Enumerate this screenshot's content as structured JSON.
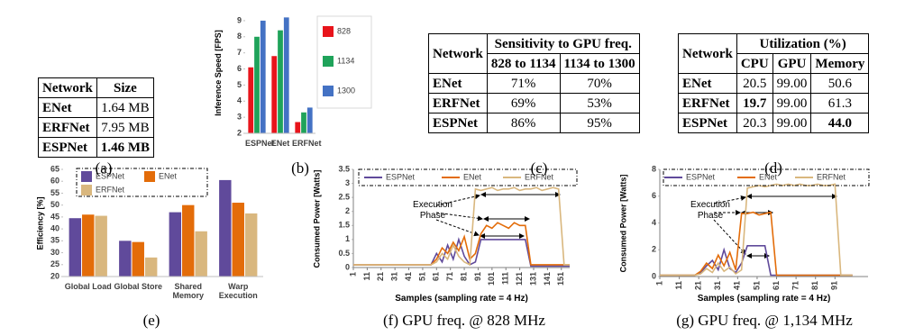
{
  "table_a": {
    "caption": "(a)",
    "header": [
      "Network",
      "Size"
    ],
    "rows": [
      [
        "ENet",
        "1.64 MB"
      ],
      [
        "ERFNet",
        "7.95 MB"
      ],
      [
        "ESPNet",
        {
          "text": "1.46 MB",
          "bold": true
        }
      ]
    ]
  },
  "table_c": {
    "caption": "(c)",
    "header": [
      "Network"
    ],
    "group": "Sensitivity to GPU freq.",
    "subheaders": [
      "828 to 1134",
      "1134 to 1300"
    ],
    "rows": [
      [
        "ENet",
        "71%",
        "70%"
      ],
      [
        "ERFNet",
        "69%",
        "53%"
      ],
      [
        "ESPNet",
        "86%",
        "95%"
      ]
    ]
  },
  "table_d": {
    "caption": "(d)",
    "header": [
      "Network"
    ],
    "group": "Utilization (%)",
    "subheaders": [
      "CPU",
      "GPU",
      "Memory"
    ],
    "rows": [
      [
        "ENet",
        "20.5",
        "99.00",
        "50.6"
      ],
      [
        "ERFNet",
        {
          "text": "19.7",
          "bold": true
        },
        "99.00",
        "61.3"
      ],
      [
        "ESPNet",
        "20.3",
        "99.00",
        {
          "text": "44.0",
          "bold": true
        }
      ]
    ]
  },
  "chart_data": [
    {
      "type": "bar",
      "caption": "(b)",
      "y_label": "Inference Speed [FPS]",
      "categories": [
        "ESPNet",
        "ENet",
        "ERFNet"
      ],
      "series": [
        {
          "name": "828",
          "color": "#e8141b",
          "values": [
            6.1,
            6.8,
            2.7
          ]
        },
        {
          "name": "1134",
          "color": "#1fa35a",
          "values": [
            8.0,
            8.4,
            3.3
          ]
        },
        {
          "name": "1300",
          "color": "#4472c4",
          "values": [
            9.0,
            9.2,
            3.6
          ]
        }
      ],
      "ylim": [
        2,
        9.5
      ],
      "yticks": [
        2,
        3,
        4,
        5,
        6,
        7,
        8,
        9
      ],
      "grid": false,
      "legend": "right"
    },
    {
      "type": "bar",
      "caption": "(e)",
      "y_label": "Efficiency [%]",
      "categories": [
        "Global Load",
        "Global Store",
        "Shared Memory",
        "Warp Execution"
      ],
      "series": [
        {
          "name": "ESPNet",
          "color": "#604a9b",
          "values": [
            44.5,
            35,
            47,
            60.5
          ]
        },
        {
          "name": "ENet",
          "color": "#e36c09",
          "values": [
            46,
            34.5,
            50,
            51
          ]
        },
        {
          "name": "ERFNet",
          "color": "#d9b77e",
          "values": [
            45.5,
            28,
            39,
            46.5
          ]
        }
      ],
      "ylim": [
        20,
        65
      ],
      "yticks": [
        20,
        25,
        30,
        35,
        40,
        45,
        50,
        55,
        60,
        65
      ],
      "grid": false,
      "legend": "top-left"
    },
    {
      "type": "line",
      "caption": "(f) GPU freq. @ 828 MHz",
      "y_label": "Consumed Power [Watts]",
      "x_label": "Samples (sampling rate = 4 Hz)",
      "annotation": "Execution Phase",
      "x": [
        1,
        5,
        9,
        13,
        17,
        21,
        25,
        29,
        33,
        37,
        41,
        45,
        49,
        53,
        57,
        61,
        65,
        69,
        73,
        77,
        81,
        85,
        89,
        93,
        97,
        101,
        105,
        109,
        113,
        117,
        121,
        125,
        129,
        133,
        137,
        141,
        145,
        149,
        153,
        157
      ],
      "series": [
        {
          "name": "ESPNet",
          "color": "#604a9b",
          "values": [
            0.1,
            0.1,
            0.1,
            0.1,
            0.1,
            0.1,
            0.1,
            0.1,
            0.1,
            0.1,
            0.1,
            0.1,
            0.1,
            0.1,
            0.1,
            0.5,
            0.2,
            0.8,
            0.3,
            1.0,
            0.4,
            0.1,
            0.2,
            1.0,
            1.0,
            1.0,
            1.0,
            1.0,
            1.0,
            1.0,
            1.0,
            1.0,
            0.05,
            0.05,
            0.05,
            0.05,
            0.05,
            0.05,
            0.05,
            0.05
          ]
        },
        {
          "name": "ENet",
          "color": "#e36c09",
          "values": [
            0.1,
            0.1,
            0.1,
            0.1,
            0.1,
            0.1,
            0.1,
            0.1,
            0.1,
            0.1,
            0.1,
            0.1,
            0.1,
            0.1,
            0.1,
            0.3,
            0.7,
            0.5,
            0.9,
            0.6,
            1.1,
            0.3,
            0.5,
            1.2,
            1.5,
            1.4,
            1.6,
            1.5,
            1.4,
            1.6,
            1.5,
            1.5,
            0.1,
            0.1,
            0.1,
            0.1,
            0.1,
            0.1,
            0.1,
            0.1
          ]
        },
        {
          "name": "ERFNet",
          "color": "#d9b77e",
          "values": [
            0.1,
            0.1,
            0.1,
            0.1,
            0.1,
            0.1,
            0.1,
            0.1,
            0.1,
            0.1,
            0.1,
            0.1,
            0.1,
            0.1,
            0.1,
            0.2,
            0.5,
            0.3,
            0.8,
            0.4,
            0.2,
            0.1,
            2.8,
            2.75,
            2.8,
            2.85,
            2.75,
            2.8,
            2.8,
            2.85,
            2.75,
            2.8,
            2.8,
            2.85,
            2.75,
            2.8,
            2.85,
            2.8,
            0.1,
            0.1
          ]
        }
      ],
      "xlim": [
        1,
        157
      ],
      "xticks": [
        1,
        11,
        21,
        31,
        41,
        51,
        61,
        71,
        81,
        91,
        101,
        111,
        121,
        131,
        141,
        151
      ],
      "ylim": [
        0,
        3.5
      ],
      "yticks": [
        0,
        0.5,
        1,
        1.5,
        2,
        2.5,
        3,
        3.5
      ],
      "legend": "top"
    },
    {
      "type": "line",
      "caption": "(g) GPU freq. @ 1,134 MHz",
      "y_label": "Consumed Power [Watts]",
      "x_label": "Samples (sampling rate = 4 Hz)",
      "annotation": "Execution Phase",
      "x": [
        1,
        4,
        7,
        10,
        13,
        16,
        19,
        22,
        25,
        28,
        31,
        34,
        37,
        40,
        43,
        46,
        49,
        52,
        55,
        58,
        61,
        64,
        67,
        70,
        73,
        76,
        79,
        82,
        85,
        88,
        91,
        94,
        97,
        100
      ],
      "series": [
        {
          "name": "ESPNet",
          "color": "#604a9b",
          "values": [
            0.1,
            0.1,
            0.1,
            0.1,
            0.1,
            0.1,
            0.1,
            0.3,
            0.8,
            1.2,
            0.5,
            2.0,
            0.6,
            0.3,
            1.0,
            2.3,
            2.3,
            2.3,
            2.3,
            0.1,
            0.1,
            0.1,
            0.1,
            0.1,
            0.1,
            0.1,
            0.1,
            0.1,
            0.1,
            0.1,
            0.1,
            0.1,
            0.1,
            0.1
          ]
        },
        {
          "name": "ENet",
          "color": "#e36c09",
          "values": [
            0.1,
            0.1,
            0.1,
            0.1,
            0.1,
            0.1,
            0.1,
            0.4,
            1.0,
            0.6,
            1.6,
            0.8,
            1.8,
            0.5,
            4.7,
            4.7,
            4.8,
            4.6,
            4.7,
            4.8,
            0.1,
            0.1,
            0.1,
            0.1,
            0.1,
            0.1,
            0.1,
            0.1,
            0.1,
            0.1,
            0.1,
            0.1,
            0.1,
            0.1
          ]
        },
        {
          "name": "ERFNet",
          "color": "#d9b77e",
          "values": [
            0.1,
            0.1,
            0.1,
            0.1,
            0.1,
            0.1,
            0.1,
            0.2,
            0.6,
            0.3,
            1.0,
            0.4,
            0.7,
            0.2,
            0.5,
            6.6,
            6.7,
            6.8,
            6.7,
            6.8,
            6.9,
            6.8,
            6.9,
            6.8,
            6.9,
            6.8,
            6.8,
            6.9,
            6.8,
            6.8,
            6.9,
            0.1,
            0.1,
            0.1
          ]
        }
      ],
      "xlim": [
        1,
        108
      ],
      "xticks": [
        1,
        11,
        21,
        31,
        41,
        51,
        61,
        71,
        81,
        91
      ],
      "ylim": [
        0,
        8
      ],
      "yticks": [
        0,
        2,
        4,
        6,
        8
      ],
      "legend": "top"
    }
  ]
}
